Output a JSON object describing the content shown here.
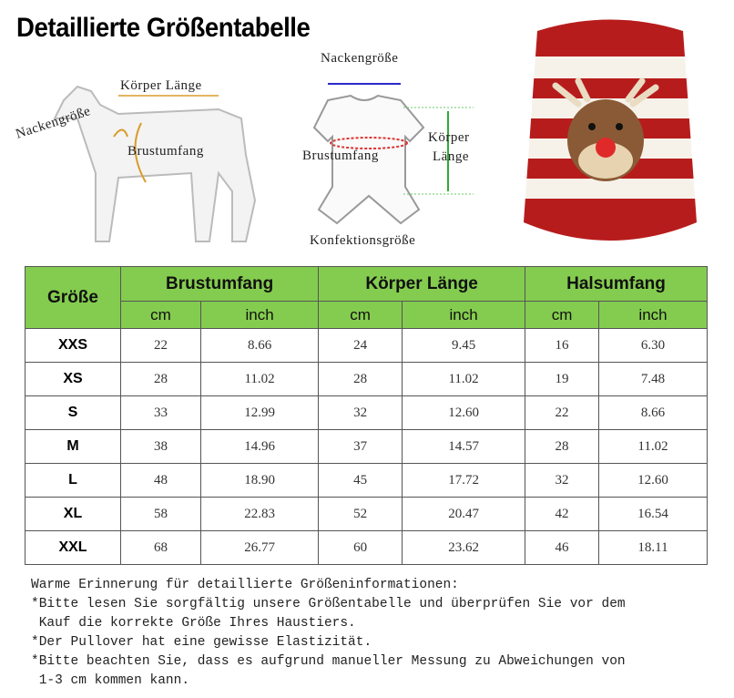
{
  "title": "Detaillierte Größentabelle",
  "dog_diagram": {
    "body_length": "Körper Länge",
    "neck": "Nackengröße",
    "chest": "Brustumfang"
  },
  "garment_diagram": {
    "neck": "Nackengröße",
    "chest": "Brustumfang",
    "body_length_1": "Körper",
    "body_length_2": "Länge",
    "size": "Konfektionsgröße"
  },
  "table": {
    "size_header": "Größe",
    "groups": [
      "Brustumfang",
      "Körper Länge",
      "Halsumfang"
    ],
    "units": [
      "cm",
      "inch",
      "cm",
      "inch",
      "cm",
      "inch"
    ],
    "rows": [
      [
        "XXS",
        "22",
        "8.66",
        "24",
        "9.45",
        "16",
        "6.30"
      ],
      [
        "XS",
        "28",
        "11.02",
        "28",
        "11.02",
        "19",
        "7.48"
      ],
      [
        "S",
        "33",
        "12.99",
        "32",
        "12.60",
        "22",
        "8.66"
      ],
      [
        "M",
        "38",
        "14.96",
        "37",
        "14.57",
        "28",
        "11.02"
      ],
      [
        "L",
        "48",
        "18.90",
        "45",
        "17.72",
        "32",
        "12.60"
      ],
      [
        "XL",
        "58",
        "22.83",
        "52",
        "20.47",
        "42",
        "16.54"
      ],
      [
        "XXL",
        "68",
        "26.77",
        "60",
        "23.62",
        "46",
        "18.11"
      ]
    ]
  },
  "notes": [
    "Warme Erinnerung für detaillierte Größeninformationen:",
    "*Bitte lesen Sie sorgfältig unsere Größentabelle und überprüfen Sie vor dem",
    " Kauf die korrekte Größe Ihres Haustiers.",
    "*Der Pullover hat eine gewisse Elastizität.",
    "*Bitte beachten Sie, dass es aufgrund manueller Messung zu Abweichungen von",
    " 1-3 cm kommen kann."
  ],
  "colors": {
    "header_green": "#84cc4f",
    "sweater_red": "#b71c1c"
  }
}
